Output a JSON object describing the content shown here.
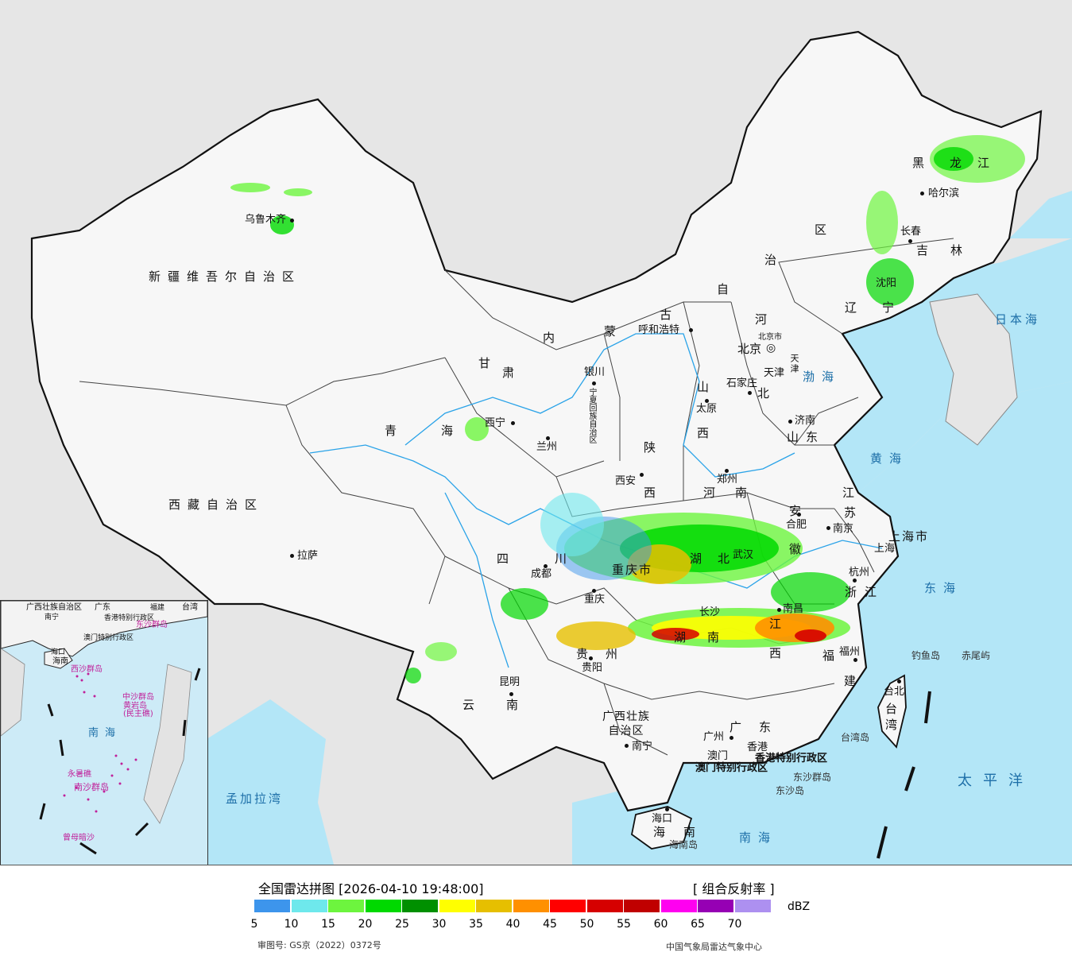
{
  "map": {
    "provinces": [
      {
        "key": "xinjiang",
        "text": "新疆维吾尔自治区"
      },
      {
        "key": "xizang",
        "text": "西藏自治区"
      },
      {
        "key": "qinghai_a",
        "text": "青"
      },
      {
        "key": "qinghai_b",
        "text": "海"
      },
      {
        "key": "gansu_a",
        "text": "甘"
      },
      {
        "key": "gansu_b",
        "text": "肃"
      },
      {
        "key": "neimenggu_1",
        "text": "内"
      },
      {
        "key": "neimenggu_2",
        "text": "蒙"
      },
      {
        "key": "neimenggu_3",
        "text": "古"
      },
      {
        "key": "neimenggu_4",
        "text": "自"
      },
      {
        "key": "neimenggu_5",
        "text": "治"
      },
      {
        "key": "neimenggu_6",
        "text": "区"
      },
      {
        "key": "heilongjiang_1",
        "text": "黑"
      },
      {
        "key": "heilongjiang_2",
        "text": "龙"
      },
      {
        "key": "heilongjiang_3",
        "text": "江"
      },
      {
        "key": "jilin_1",
        "text": "吉"
      },
      {
        "key": "jilin_2",
        "text": "林"
      },
      {
        "key": "liaoning_1",
        "text": "辽"
      },
      {
        "key": "liaoning_2",
        "text": "宁"
      },
      {
        "key": "hebei_1",
        "text": "河"
      },
      {
        "key": "hebei_2",
        "text": "北"
      },
      {
        "key": "shanxi_1",
        "text": "山"
      },
      {
        "key": "shanxi_2",
        "text": "西"
      },
      {
        "key": "shandong",
        "text": "山东"
      },
      {
        "key": "shaanxi_1",
        "text": "陕"
      },
      {
        "key": "shaanxi_2",
        "text": "西"
      },
      {
        "key": "henan_1",
        "text": "河"
      },
      {
        "key": "henan_2",
        "text": "南"
      },
      {
        "key": "jiangsu_1",
        "text": "江"
      },
      {
        "key": "jiangsu_2",
        "text": "苏"
      },
      {
        "key": "anhui_1",
        "text": "安"
      },
      {
        "key": "anhui_2",
        "text": "徽"
      },
      {
        "key": "hubei_1",
        "text": "湖"
      },
      {
        "key": "hubei_2",
        "text": "北"
      },
      {
        "key": "sichuan_1",
        "text": "四"
      },
      {
        "key": "sichuan_2",
        "text": "川"
      },
      {
        "key": "chongqing",
        "text": "重庆市"
      },
      {
        "key": "hunan_1",
        "text": "湖"
      },
      {
        "key": "hunan_2",
        "text": "南"
      },
      {
        "key": "jiangxi_1",
        "text": "江"
      },
      {
        "key": "jiangxi_2",
        "text": "西"
      },
      {
        "key": "zhejiang_1",
        "text": "浙"
      },
      {
        "key": "zhejiang_2",
        "text": "江"
      },
      {
        "key": "fujian_1",
        "text": "福"
      },
      {
        "key": "fujian_2",
        "text": "建"
      },
      {
        "key": "guizhou_1",
        "text": "贵"
      },
      {
        "key": "guizhou_2",
        "text": "州"
      },
      {
        "key": "yunnan_1",
        "text": "云"
      },
      {
        "key": "yunnan_2",
        "text": "南"
      },
      {
        "key": "guangxi",
        "text": "广西壮族\n自治区"
      },
      {
        "key": "guangdong_1",
        "text": "广"
      },
      {
        "key": "guangdong_2",
        "text": "东"
      },
      {
        "key": "hainan_1",
        "text": "海"
      },
      {
        "key": "hainan_2",
        "text": "南"
      },
      {
        "key": "taiwan",
        "text": "台\n湾"
      },
      {
        "key": "shanghai",
        "text": "上海市"
      },
      {
        "key": "tianjin",
        "text": "天津"
      },
      {
        "key": "ningxia",
        "text": "宁夏回族自治区"
      },
      {
        "key": "hk",
        "text": "香港特别行政区"
      },
      {
        "key": "macao",
        "text": "澳门特别行政区"
      }
    ],
    "cities": [
      {
        "key": "urumqi",
        "text": "乌鲁木齐"
      },
      {
        "key": "lhasa",
        "text": "拉萨"
      },
      {
        "key": "xining",
        "text": "西宁"
      },
      {
        "key": "lanzhou",
        "text": "兰州"
      },
      {
        "key": "yinchuan",
        "text": "银川"
      },
      {
        "key": "hohhot",
        "text": "呼和浩特"
      },
      {
        "key": "beijing",
        "text": "北京"
      },
      {
        "key": "beijingshi",
        "text": "北京市"
      },
      {
        "key": "tianjin_c",
        "text": "天津"
      },
      {
        "key": "shijiazhuang",
        "text": "石家庄"
      },
      {
        "key": "taiyuan",
        "text": "太原"
      },
      {
        "key": "jinan",
        "text": "济南"
      },
      {
        "key": "xian",
        "text": "西安"
      },
      {
        "key": "zhengzhou",
        "text": "郑州"
      },
      {
        "key": "hefei",
        "text": "合肥"
      },
      {
        "key": "nanjing",
        "text": "南京"
      },
      {
        "key": "shanghai_c",
        "text": "上海"
      },
      {
        "key": "hangzhou",
        "text": "杭州"
      },
      {
        "key": "wuhan",
        "text": "武汉"
      },
      {
        "key": "chengdu",
        "text": "成都"
      },
      {
        "key": "chongqing_c",
        "text": "重庆"
      },
      {
        "key": "changsha",
        "text": "长沙"
      },
      {
        "key": "nanchang",
        "text": "南昌"
      },
      {
        "key": "fuzhou",
        "text": "福州"
      },
      {
        "key": "guiyang",
        "text": "贵阳"
      },
      {
        "key": "kunming",
        "text": "昆明"
      },
      {
        "key": "nanning",
        "text": "南宁"
      },
      {
        "key": "guangzhou",
        "text": "广州"
      },
      {
        "key": "hongkong",
        "text": "香港"
      },
      {
        "key": "macau",
        "text": "澳门"
      },
      {
        "key": "haikou",
        "text": "海口"
      },
      {
        "key": "taipei",
        "text": "台北"
      },
      {
        "key": "harbin",
        "text": "哈尔滨"
      },
      {
        "key": "changchun",
        "text": "长春"
      },
      {
        "key": "shenyang",
        "text": "沈阳"
      }
    ],
    "seas": [
      {
        "key": "bohai",
        "text": "渤海"
      },
      {
        "key": "huanghai",
        "text": "黄海"
      },
      {
        "key": "donghai",
        "text": "东海"
      },
      {
        "key": "nanhai",
        "text": "南海"
      },
      {
        "key": "taipingyang",
        "text": "太平洋"
      },
      {
        "key": "ribenhai",
        "text": "日本海"
      },
      {
        "key": "mengjialawan",
        "text": "孟加拉湾"
      }
    ],
    "islands": [
      {
        "key": "diaoyu",
        "text": "钓鱼岛"
      },
      {
        "key": "chiwei",
        "text": "赤尾屿"
      },
      {
        "key": "taiwandao",
        "text": "台湾岛"
      },
      {
        "key": "dongsha",
        "text": "东沙群岛"
      },
      {
        "key": "dongshadao",
        "text": "东沙岛"
      },
      {
        "key": "hainandao",
        "text": "海南岛"
      }
    ],
    "inset": {
      "labels": [
        {
          "key": "i_guangxi",
          "text": "广西壮族自治区"
        },
        {
          "key": "i_guangdong",
          "text": "广东"
        },
        {
          "key": "i_fujian",
          "text": "福建"
        },
        {
          "key": "i_taiwan",
          "text": "台湾"
        },
        {
          "key": "i_nanning",
          "text": "南宁"
        },
        {
          "key": "i_hk",
          "text": "香港特别行政区"
        },
        {
          "key": "i_macao",
          "text": "澳门特别行政区"
        },
        {
          "key": "i_dongsha",
          "text": "东沙群岛"
        },
        {
          "key": "i_haikou",
          "text": "海口"
        },
        {
          "key": "i_hainan",
          "text": "海南"
        },
        {
          "key": "i_xisha",
          "text": "西沙群岛"
        },
        {
          "key": "i_zhongsha",
          "text": "中沙群岛"
        },
        {
          "key": "i_huangyan",
          "text": "黄岩岛\n(民主礁)"
        },
        {
          "key": "i_nanhai",
          "text": "南海"
        },
        {
          "key": "i_nansha",
          "text": "南沙群岛"
        },
        {
          "key": "i_yongshu",
          "text": "永暑礁"
        },
        {
          "key": "i_zengmu",
          "text": "曾母暗沙"
        }
      ]
    }
  },
  "legend": {
    "title": "全国雷达拼图 [2026-04-10 19:48:00]",
    "product": "[ 组合反射率 ]",
    "unit": "dBZ",
    "colors": [
      "#3d95ec",
      "#6ee8ec",
      "#6df53e",
      "#00d900",
      "#009000",
      "#ffff00",
      "#e6bf00",
      "#ff9000",
      "#ff0000",
      "#d60000",
      "#c00000",
      "#ff00f0",
      "#9600b4",
      "#ad90f0"
    ],
    "ticks": [
      "5",
      "10",
      "15",
      "20",
      "25",
      "30",
      "35",
      "40",
      "45",
      "50",
      "55",
      "60",
      "65",
      "70"
    ],
    "approval": "审图号: GS京（2022）0372号",
    "source": "中国气象局雷达气象中心"
  }
}
